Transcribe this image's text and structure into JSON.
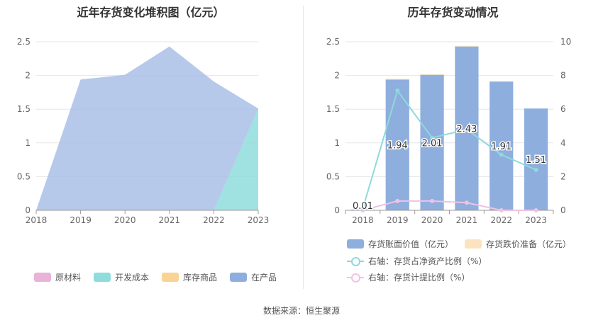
{
  "left_chart": {
    "title": "近年存货变化堆积图（亿元）",
    "legend": [
      "原材料",
      "开发成本",
      "库存商品",
      "在产品"
    ]
  },
  "right_chart": {
    "title": "历年存货变动情况",
    "legend": [
      "存货账面价值（亿元）",
      "存货跌价准备（亿元）",
      "右轴：存货占净资产比例（%）",
      "右轴：存货计提比例（%）"
    ]
  },
  "source": "数据来源：恒生聚源",
  "chart_data": [
    {
      "type": "area",
      "title": "近年存货变化堆积图（亿元）",
      "x": [
        "2018",
        "2019",
        "2020",
        "2021",
        "2022",
        "2023"
      ],
      "ylim": [
        0,
        2.5
      ],
      "yticks": [
        "0",
        "0.5",
        "1",
        "1.5",
        "2",
        "2.5"
      ],
      "stacked": true,
      "series": [
        {
          "name": "原材料",
          "color": "#e8b2d9",
          "values": [
            0,
            0,
            0,
            0,
            0,
            0
          ]
        },
        {
          "name": "开发成本",
          "color": "#8fdcdc",
          "values": [
            0,
            0,
            0,
            0,
            0,
            1.51
          ]
        },
        {
          "name": "库存商品",
          "color": "#f8d494",
          "values": [
            0,
            0,
            0,
            0,
            0,
            0
          ]
        },
        {
          "name": "在产品",
          "color": "#a9bfe6",
          "values": [
            0,
            1.94,
            2.01,
            2.43,
            1.91,
            0
          ]
        }
      ],
      "legend_position": "bottom"
    },
    {
      "type": "bar",
      "title": "历年存货变动情况",
      "categories": [
        "2018",
        "2019",
        "2020",
        "2021",
        "2022",
        "2023"
      ],
      "ylim": [
        0,
        2.5
      ],
      "yticks": [
        "0",
        "0.5",
        "1",
        "1.5",
        "2",
        "2.5"
      ],
      "y2lim": [
        0,
        10
      ],
      "y2ticks": [
        "0",
        "2",
        "4",
        "6",
        "8",
        "10"
      ],
      "series": [
        {
          "name": "存货账面价值（亿元）",
          "type": "bar",
          "color": "#8eaedd",
          "values": [
            0.01,
            1.94,
            2.01,
            2.43,
            1.91,
            1.51
          ],
          "labels": [
            "0.01",
            "1.94",
            "2.01",
            "2.43",
            "1.91",
            "1.51"
          ]
        },
        {
          "name": "存货跌价准备（亿元）",
          "type": "bar",
          "color": "#fce3c0",
          "values": [
            0,
            0.01,
            0.01,
            0.01,
            0,
            0
          ]
        },
        {
          "name": "右轴：存货占净资产比例（%）",
          "type": "line",
          "axis": "right",
          "color": "#8fd9dd",
          "values": [
            0.1,
            7.1,
            4.3,
            4.8,
            3.3,
            2.4
          ]
        },
        {
          "name": "右轴：存货计提比例（%）",
          "type": "line",
          "axis": "right",
          "color": "#efc3e4",
          "values": [
            0,
            0.55,
            0.55,
            0.45,
            0,
            0
          ]
        }
      ],
      "legend_position": "bottom"
    }
  ]
}
